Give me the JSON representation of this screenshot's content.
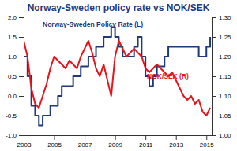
{
  "chart_data": {
    "type": "line",
    "title": "Norway-Sweden policy rate vs NOK/SEK",
    "x": [
      2003,
      2003.25,
      2003.5,
      2003.75,
      2004,
      2004.25,
      2004.5,
      2004.75,
      2005,
      2005.25,
      2005.5,
      2005.75,
      2006,
      2006.25,
      2006.5,
      2006.75,
      2007,
      2007.25,
      2007.5,
      2007.75,
      2008,
      2008.25,
      2008.5,
      2008.75,
      2009,
      2009.25,
      2009.5,
      2009.75,
      2010,
      2010.25,
      2010.5,
      2010.75,
      2011,
      2011.25,
      2011.5,
      2011.75,
      2012,
      2012.25,
      2012.5,
      2012.75,
      2013,
      2013.25,
      2013.5,
      2013.75,
      2014,
      2014.25,
      2014.5,
      2014.75,
      2015,
      2015.25
    ],
    "series": [
      {
        "name": "Norway-Sweden Policy Rate (L)",
        "color": "#1f3a7a",
        "line_style": "step",
        "values": [
          1.0,
          0.5,
          -0.25,
          -0.5,
          -0.75,
          -0.5,
          -0.5,
          -0.25,
          -0.25,
          0.0,
          0.25,
          0.25,
          0.25,
          0.5,
          0.5,
          0.75,
          0.75,
          1.0,
          1.0,
          1.25,
          1.25,
          1.5,
          1.5,
          1.75,
          1.5,
          1.25,
          1.0,
          1.0,
          1.0,
          1.25,
          1.5,
          1.0,
          0.5,
          0.25,
          0.5,
          0.75,
          0.75,
          1.0,
          1.25,
          1.25,
          1.25,
          1.25,
          1.25,
          1.25,
          1.25,
          1.25,
          1.0,
          1.0,
          1.25,
          1.5
        ]
      },
      {
        "name": "NOK/SEK (R)",
        "color": "#e8141b",
        "line_style": "solid",
        "axis": "y2",
        "values": [
          1.24,
          1.2,
          1.12,
          1.08,
          1.07,
          1.1,
          1.13,
          1.17,
          1.2,
          1.19,
          1.18,
          1.17,
          1.19,
          1.18,
          1.17,
          1.2,
          1.22,
          1.24,
          1.21,
          1.17,
          1.15,
          1.18,
          1.14,
          1.1,
          1.2,
          1.24,
          1.22,
          1.2,
          1.21,
          1.22,
          1.21,
          1.2,
          1.17,
          1.16,
          1.17,
          1.18,
          1.17,
          1.16,
          1.15,
          1.16,
          1.14,
          1.12,
          1.1,
          1.09,
          1.1,
          1.08,
          1.09,
          1.06,
          1.05,
          1.07
        ]
      }
    ],
    "xlim": [
      2003,
      2015.35
    ],
    "xticks": [
      2003,
      2005,
      2007,
      2009,
      2011,
      2013,
      2015
    ],
    "ylim": [
      -1,
      2
    ],
    "yticks": [
      {
        "value": -1,
        "label": "-1.0"
      },
      {
        "value": -0.5,
        "label": "-0.5"
      },
      {
        "value": 0,
        "label": "0.0"
      },
      {
        "value": 0.5,
        "label": "0.5"
      },
      {
        "value": 1,
        "label": "1.0"
      },
      {
        "value": 1.5,
        "label": "1.5"
      },
      {
        "value": 2,
        "label": "2.0"
      }
    ],
    "y2lim": [
      1.0,
      1.3
    ],
    "y2ticks": [
      {
        "value": 1.0,
        "label": "1.00"
      },
      {
        "value": 1.05,
        "label": "1.05"
      },
      {
        "value": 1.1,
        "label": "1.10"
      },
      {
        "value": 1.15,
        "label": "1.15"
      },
      {
        "value": 1.2,
        "label": "1.20"
      },
      {
        "value": 1.25,
        "label": "1.25"
      },
      {
        "value": 1.3,
        "label": "1.30"
      }
    ]
  }
}
